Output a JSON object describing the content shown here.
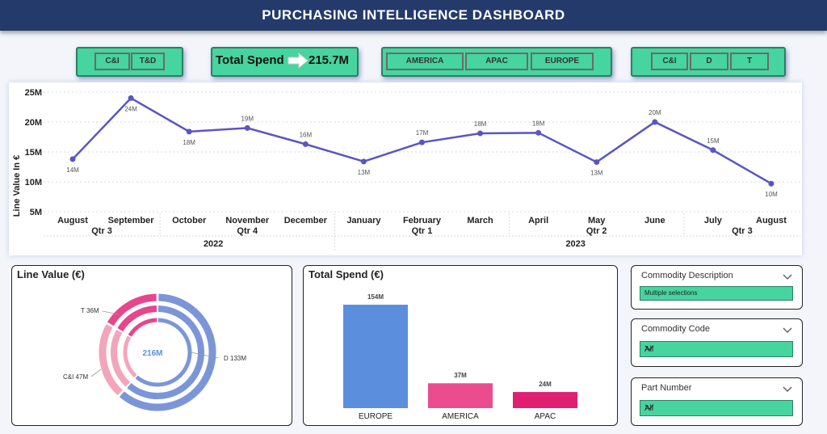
{
  "header": {
    "title": "PURCHASING INTELLIGENCE DASHBOARD"
  },
  "filters": {
    "segment_buttons": [
      "C&I",
      "T&D"
    ],
    "total_spend_label": "Total Spend",
    "total_spend_value": "215.7M",
    "region_buttons": [
      "AMERICA",
      "APAC",
      "EUROPE"
    ],
    "category_buttons": [
      "C&I",
      "D",
      "T"
    ]
  },
  "line_chart": {
    "ylabel": "Line Value In €",
    "yticks": [
      "25M",
      "20M",
      "15M",
      "10M",
      "5M"
    ],
    "quarters_2022": [
      "Qtr 3",
      "Qtr 4"
    ],
    "quarters_2023": [
      "Qtr 1",
      "Qtr 2",
      "Qtr 3"
    ],
    "years": [
      "2022",
      "2023"
    ]
  },
  "chart_data": [
    {
      "type": "line",
      "x": [
        "August",
        "September",
        "October",
        "November",
        "December",
        "January",
        "February",
        "March",
        "April",
        "May",
        "June",
        "July",
        "August"
      ],
      "values": [
        13.8,
        24,
        18.4,
        19,
        16.3,
        13.4,
        16.6,
        18.1,
        18.2,
        13.3,
        20,
        15.3,
        9.7
      ],
      "data_labels": [
        "14M",
        "24M",
        "18M",
        "19M",
        "16M",
        "13M",
        "17M",
        "18M",
        "18M",
        "13M",
        "20M",
        "15M",
        "10M"
      ],
      "ylabel": "Line Value In €",
      "ylim": [
        5,
        25
      ],
      "yticks": [
        "25M",
        "20M",
        "15M",
        "10M",
        "5M"
      ],
      "color": "#5a55c4",
      "grid": true
    },
    {
      "type": "pie",
      "title": "Line Value (€)",
      "center_label": "216M",
      "slices": [
        {
          "label": "D 133M",
          "value": 133,
          "color": "#7b96d8"
        },
        {
          "label": "C&I 47M",
          "value": 47,
          "color": "#f4a4bd"
        },
        {
          "label": "T 36M",
          "value": 36,
          "color": "#e8458a"
        }
      ]
    },
    {
      "type": "bar",
      "title": "Total Spend (€)",
      "categories": [
        "EUROPE",
        "AMERICA",
        "APAC"
      ],
      "values": [
        154,
        37,
        24
      ],
      "data_labels": [
        "154M",
        "37M",
        "24M"
      ],
      "colors": [
        "#5b8fde",
        "#ea4d8e",
        "#e01f72"
      ]
    }
  ],
  "slicers": [
    {
      "title": "Commodity Description",
      "value": "Multiple selections"
    },
    {
      "title": "Commodity Code",
      "value": "All"
    },
    {
      "title": "Part Number",
      "value": "All"
    }
  ],
  "colors": {
    "accent": "#46d49f",
    "header": "#233a6b"
  }
}
